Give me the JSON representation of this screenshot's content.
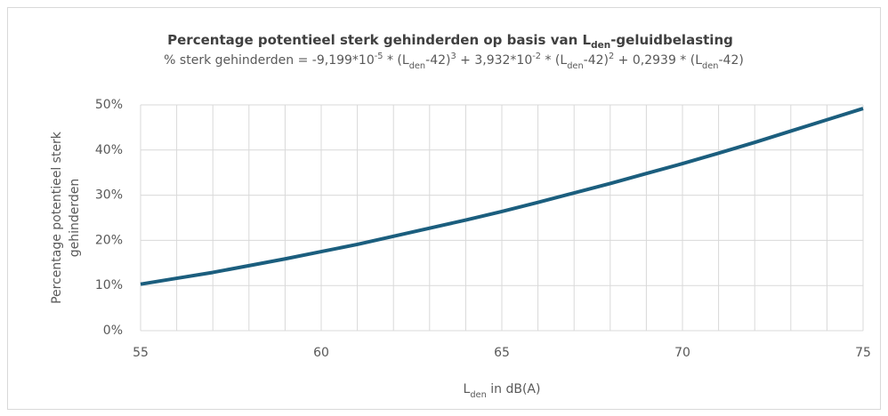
{
  "chart_data": {
    "type": "line",
    "title": [
      {
        "text": "Percentage potentieel sterk gehinderden op basis van L"
      },
      {
        "text": "den",
        "pos": "sub"
      },
      {
        "text": "-geluidbelasting"
      }
    ],
    "subtitle": [
      {
        "text": "% sterk gehinderden = -9,199*10"
      },
      {
        "text": "-5",
        "pos": "super"
      },
      {
        "text": " * (L"
      },
      {
        "text": "den",
        "pos": "sub"
      },
      {
        "text": "-42)"
      },
      {
        "text": "3",
        "pos": "super"
      },
      {
        "text": " + 3,932*10"
      },
      {
        "text": "-2",
        "pos": "super"
      },
      {
        "text": " * (L"
      },
      {
        "text": "den",
        "pos": "sub"
      },
      {
        "text": "-42)"
      },
      {
        "text": "2",
        "pos": "super"
      },
      {
        "text": " + 0,2939 * (L"
      },
      {
        "text": "den",
        "pos": "sub"
      },
      {
        "text": "-42)"
      }
    ],
    "x_label": [
      {
        "text": "L"
      },
      {
        "text": "den",
        "pos": "sub"
      },
      {
        "text": " in dB(A)"
      }
    ],
    "y_label": [
      "Percentage potentieel sterk",
      "gehinderden"
    ],
    "x": [
      55,
      56,
      57,
      58,
      59,
      60,
      61,
      62,
      63,
      64,
      65,
      66,
      67,
      68,
      69,
      70,
      71,
      72,
      73,
      74,
      75
    ],
    "series": [
      {
        "color": "#1b5e7e",
        "values": [
          10.3,
          11.6,
          12.9,
          14.4,
          15.9,
          17.5,
          19.1,
          20.9,
          22.7,
          24.5,
          26.4,
          28.4,
          30.5,
          32.6,
          34.8,
          37.0,
          39.3,
          41.7,
          44.2,
          46.7,
          49.2
        ]
      }
    ],
    "xlim": [
      55,
      75
    ],
    "xticks": [
      55,
      60,
      65,
      70,
      75
    ],
    "ylim": [
      0,
      50
    ],
    "yticks": [
      {
        "value": 0,
        "label": "0%"
      },
      {
        "value": 10,
        "label": "10%"
      },
      {
        "value": 20,
        "label": "20%"
      },
      {
        "value": 30,
        "label": "30%"
      },
      {
        "value": 40,
        "label": "40%"
      },
      {
        "value": 50,
        "label": "50%"
      }
    ],
    "grid": true
  }
}
